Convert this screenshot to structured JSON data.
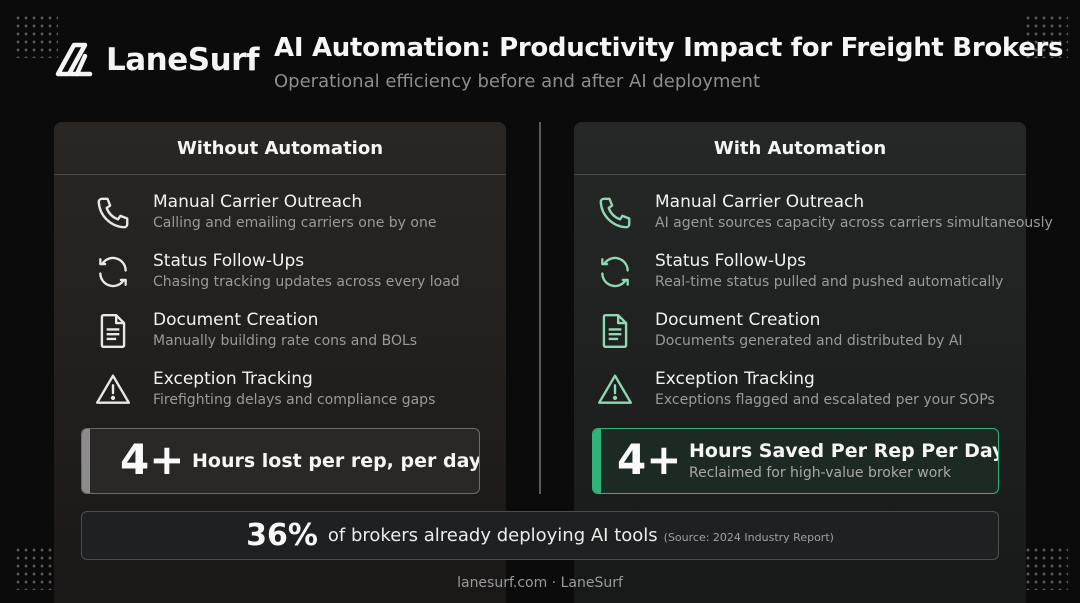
{
  "brand": {
    "name": "LaneSurf",
    "logo_icon": "lanesurf-logo-icon"
  },
  "header": {
    "title": "AI Automation: Productivity Impact for Freight Brokers",
    "subtitle": "Operational efficiency before and after AI deployment"
  },
  "colors": {
    "accent": "#2fb37a",
    "neutral_bar": "#8c8c8c",
    "background": "#0b0b0c"
  },
  "without": {
    "heading": "Without Automation",
    "items": [
      {
        "icon": "phone-icon",
        "title": "Manual Carrier Outreach",
        "desc": "Calling and emailing carriers one by one"
      },
      {
        "icon": "refresh-icon",
        "title": "Status Follow-Ups",
        "desc": "Chasing tracking updates across every load"
      },
      {
        "icon": "document-icon",
        "title": "Document Creation",
        "desc": "Manually building rate cons and BOLs"
      },
      {
        "icon": "warning-icon",
        "title": "Exception Tracking",
        "desc": "Firefighting delays and compliance gaps"
      }
    ],
    "stat_value": "4+",
    "stat_label": "Hours lost per rep, per day"
  },
  "with": {
    "heading": "With Automation",
    "items": [
      {
        "icon": "phone-icon",
        "title": "Manual Carrier Outreach",
        "desc": "AI agent sources capacity across carriers simultaneously"
      },
      {
        "icon": "refresh-icon",
        "title": "Status Follow-Ups",
        "desc": "Real-time status pulled and pushed automatically"
      },
      {
        "icon": "document-icon",
        "title": "Document Creation",
        "desc": "Documents generated and distributed by AI"
      },
      {
        "icon": "warning-icon",
        "title": "Exception Tracking",
        "desc": "Exceptions flagged and escalated per your SOPs"
      }
    ],
    "stat_value": "4+",
    "stat_label": "Hours Saved Per Rep Per Day",
    "stat_sub": "Reclaimed for high-value broker work"
  },
  "adoption": {
    "value": "36%",
    "text": "of brokers already deploying AI tools",
    "source": "(Source: 2024 Industry Report)"
  },
  "footer": "lanesurf.com · LaneSurf"
}
